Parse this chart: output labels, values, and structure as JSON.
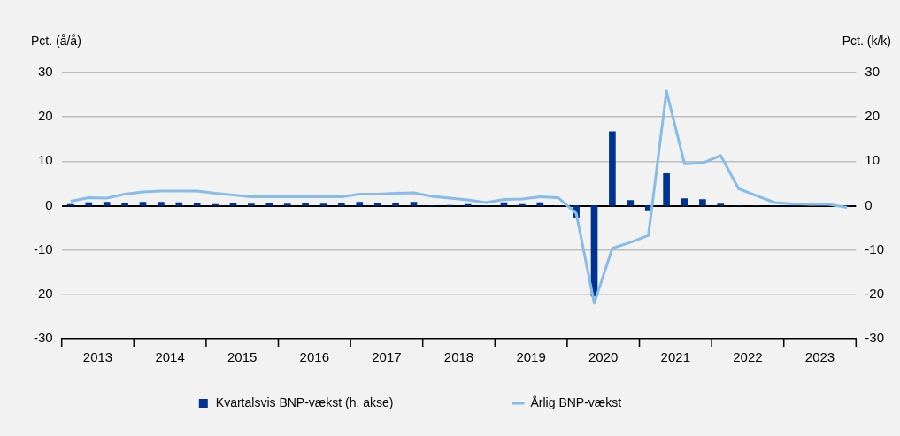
{
  "chart_data": {
    "type": "bar",
    "ylabel": "Pct. (å/å)",
    "y2label": "Pct. (k/k)",
    "x": [
      2013.125,
      2013.375,
      2013.625,
      2013.875,
      2014.125,
      2014.375,
      2014.625,
      2014.875,
      2015.125,
      2015.375,
      2015.625,
      2015.875,
      2016.125,
      2016.375,
      2016.625,
      2016.875,
      2017.125,
      2017.375,
      2017.625,
      2017.875,
      2018.125,
      2018.375,
      2018.625,
      2018.875,
      2019.125,
      2019.375,
      2019.625,
      2019.875,
      2020.125,
      2020.375,
      2020.625,
      2020.875,
      2021.125,
      2021.375,
      2021.625,
      2021.875,
      2022.125,
      2022.375,
      2022.625,
      2022.875,
      2023.125,
      2023.375,
      2023.625,
      2023.875
    ],
    "series": [
      {
        "name": "Kvartalsvis BNP-vækst (h. akse)",
        "axis": "y2",
        "color": "#003391",
        "values": [
          0.3,
          0.7,
          0.8,
          0.6,
          0.8,
          0.8,
          0.7,
          0.6,
          0.3,
          0.6,
          0.4,
          0.6,
          0.4,
          0.6,
          0.4,
          0.6,
          0.8,
          0.6,
          0.6,
          0.8,
          0,
          0.1,
          0.3,
          0,
          0.7,
          0.3,
          0.7,
          0,
          -2.8,
          -20.4,
          16.7,
          1.2,
          -1.2,
          7.2,
          1.6,
          1.4,
          0.4,
          0,
          0,
          0,
          0,
          0,
          0,
          -0.1
        ]
      },
      {
        "name": "Årlig BNP-vækst",
        "type": "line",
        "axis": "y",
        "color": "#85bce8",
        "values": [
          1.0,
          1.8,
          1.7,
          2.6,
          3.1,
          3.3,
          3.3,
          3.3,
          2.8,
          2.4,
          2.0,
          2.0,
          2.0,
          2.0,
          2.0,
          2.0,
          2.6,
          2.6,
          2.8,
          2.9,
          2.1,
          1.7,
          1.3,
          0.7,
          1.4,
          1.5,
          2.0,
          1.8,
          -1.7,
          -22.0,
          -9.6,
          -8.3,
          -6.7,
          25.8,
          9.4,
          9.6,
          11.3,
          3.8,
          2.2,
          0.7,
          0.4,
          0.3,
          0.3,
          -0.4
        ]
      }
    ],
    "xlim": [
      2013,
      2024
    ],
    "xticks": [
      {
        "value": 2013,
        "label": null
      },
      {
        "value": 2013.5,
        "label": "2013"
      },
      {
        "value": 2014,
        "label": null
      },
      {
        "value": 2014.5,
        "label": "2014"
      },
      {
        "value": 2015,
        "label": null
      },
      {
        "value": 2015.5,
        "label": "2015"
      },
      {
        "value": 2016,
        "label": null
      },
      {
        "value": 2016.5,
        "label": "2016"
      },
      {
        "value": 2017,
        "label": null
      },
      {
        "value": 2017.5,
        "label": "2017"
      },
      {
        "value": 2018,
        "label": null
      },
      {
        "value": 2018.5,
        "label": "2018"
      },
      {
        "value": 2019,
        "label": null
      },
      {
        "value": 2019.5,
        "label": "2019"
      },
      {
        "value": 2020,
        "label": null
      },
      {
        "value": 2020.5,
        "label": "2020"
      },
      {
        "value": 2021,
        "label": null
      },
      {
        "value": 2021.5,
        "label": "2021"
      },
      {
        "value": 2022,
        "label": null
      },
      {
        "value": 2022.5,
        "label": "2022"
      },
      {
        "value": 2023,
        "label": null
      },
      {
        "value": 2023.5,
        "label": "2023"
      },
      {
        "value": 2024,
        "label": null
      }
    ],
    "ylim": [
      -30,
      30
    ],
    "yticks": [
      -30,
      -20,
      -10,
      0,
      10,
      20,
      30
    ],
    "y2lim": [
      -30,
      30
    ],
    "y2ticks": [
      -30,
      -20,
      -10,
      0,
      10,
      20,
      30
    ],
    "grid": "y",
    "legend": "bottom",
    "marker": "none",
    "line_style": "solid"
  }
}
